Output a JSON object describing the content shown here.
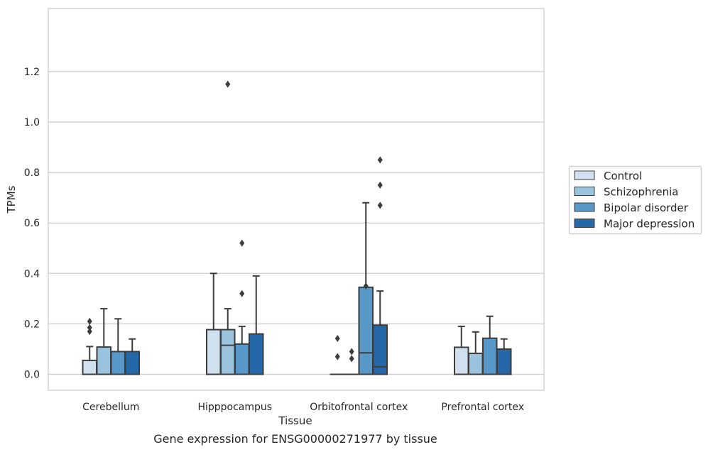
{
  "chart_data": {
    "type": "box",
    "xlabel": "Tissue",
    "ylabel": "TPMs",
    "caption": "Gene expression for ENSG00000271977 by tissue",
    "ylim": [
      -0.055,
      1.21
    ],
    "yticks": [
      0.0,
      0.2,
      0.4,
      0.6,
      0.8,
      1.0,
      1.2
    ],
    "ytick_labels": [
      "0.0",
      "0.2",
      "0.4",
      "0.6",
      "0.8",
      "1.0",
      "1.2"
    ],
    "grid": "horizontal",
    "legend_position": "right",
    "categories": [
      "Cerebellum",
      "Hipppocampus",
      "Orbitofrontal cortex",
      "Prefrontal cortex"
    ],
    "series": [
      {
        "name": "Control",
        "color": "#d1e0ef",
        "boxes": [
          {
            "q1": 0.0,
            "median": 0.0,
            "q3": 0.055,
            "whisker_low": 0.0,
            "whisker_high": 0.11,
            "outliers": [
              0.17,
              0.185,
              0.21
            ]
          },
          {
            "q1": 0.0,
            "median": 0.0,
            "q3": 0.177,
            "whisker_low": 0.0,
            "whisker_high": 0.4,
            "outliers": []
          },
          {
            "q1": 0.0,
            "median": 0.0,
            "q3": 0.0,
            "whisker_low": 0.0,
            "whisker_high": 0.0,
            "outliers": [
              0.07,
              0.142
            ]
          },
          {
            "q1": 0.0,
            "median": 0.0,
            "q3": 0.107,
            "whisker_low": 0.0,
            "whisker_high": 0.19,
            "outliers": []
          }
        ]
      },
      {
        "name": "Schizophrenia",
        "color": "#9ac4de",
        "boxes": [
          {
            "q1": 0.0,
            "median": 0.0,
            "q3": 0.108,
            "whisker_low": 0.0,
            "whisker_high": 0.26,
            "outliers": []
          },
          {
            "q1": 0.0,
            "median": 0.115,
            "q3": 0.177,
            "whisker_low": 0.0,
            "whisker_high": 0.26,
            "outliers": [
              1.15
            ]
          },
          {
            "q1": 0.0,
            "median": 0.0,
            "q3": 0.0,
            "whisker_low": 0.0,
            "whisker_high": 0.0,
            "outliers": [
              0.062,
              0.09
            ]
          },
          {
            "q1": 0.0,
            "median": 0.0,
            "q3": 0.083,
            "whisker_low": 0.0,
            "whisker_high": 0.168,
            "outliers": []
          }
        ]
      },
      {
        "name": "Bipolar disorder",
        "color": "#5798c8",
        "boxes": [
          {
            "q1": 0.0,
            "median": 0.0,
            "q3": 0.09,
            "whisker_low": 0.0,
            "whisker_high": 0.22,
            "outliers": []
          },
          {
            "q1": 0.0,
            "median": 0.0,
            "q3": 0.12,
            "whisker_low": 0.0,
            "whisker_high": 0.19,
            "outliers": [
              0.32,
              0.52
            ]
          },
          {
            "q1": 0.0,
            "median": 0.085,
            "q3": 0.345,
            "whisker_low": 0.0,
            "whisker_high": 0.68,
            "outliers": [
              0.35
            ]
          },
          {
            "q1": 0.0,
            "median": 0.0,
            "q3": 0.143,
            "whisker_low": 0.0,
            "whisker_high": 0.23,
            "outliers": []
          }
        ]
      },
      {
        "name": "Major depression",
        "color": "#2568a9",
        "boxes": [
          {
            "q1": 0.0,
            "median": 0.0,
            "q3": 0.09,
            "whisker_low": 0.0,
            "whisker_high": 0.14,
            "outliers": []
          },
          {
            "q1": 0.0,
            "median": 0.0,
            "q3": 0.16,
            "whisker_low": 0.0,
            "whisker_high": 0.39,
            "outliers": []
          },
          {
            "q1": 0.0,
            "median": 0.03,
            "q3": 0.195,
            "whisker_low": 0.0,
            "whisker_high": 0.33,
            "outliers": [
              0.67,
              0.75,
              0.85
            ]
          },
          {
            "q1": 0.0,
            "median": 0.0,
            "q3": 0.1,
            "whisker_low": 0.0,
            "whisker_high": 0.14,
            "outliers": []
          }
        ]
      }
    ]
  }
}
